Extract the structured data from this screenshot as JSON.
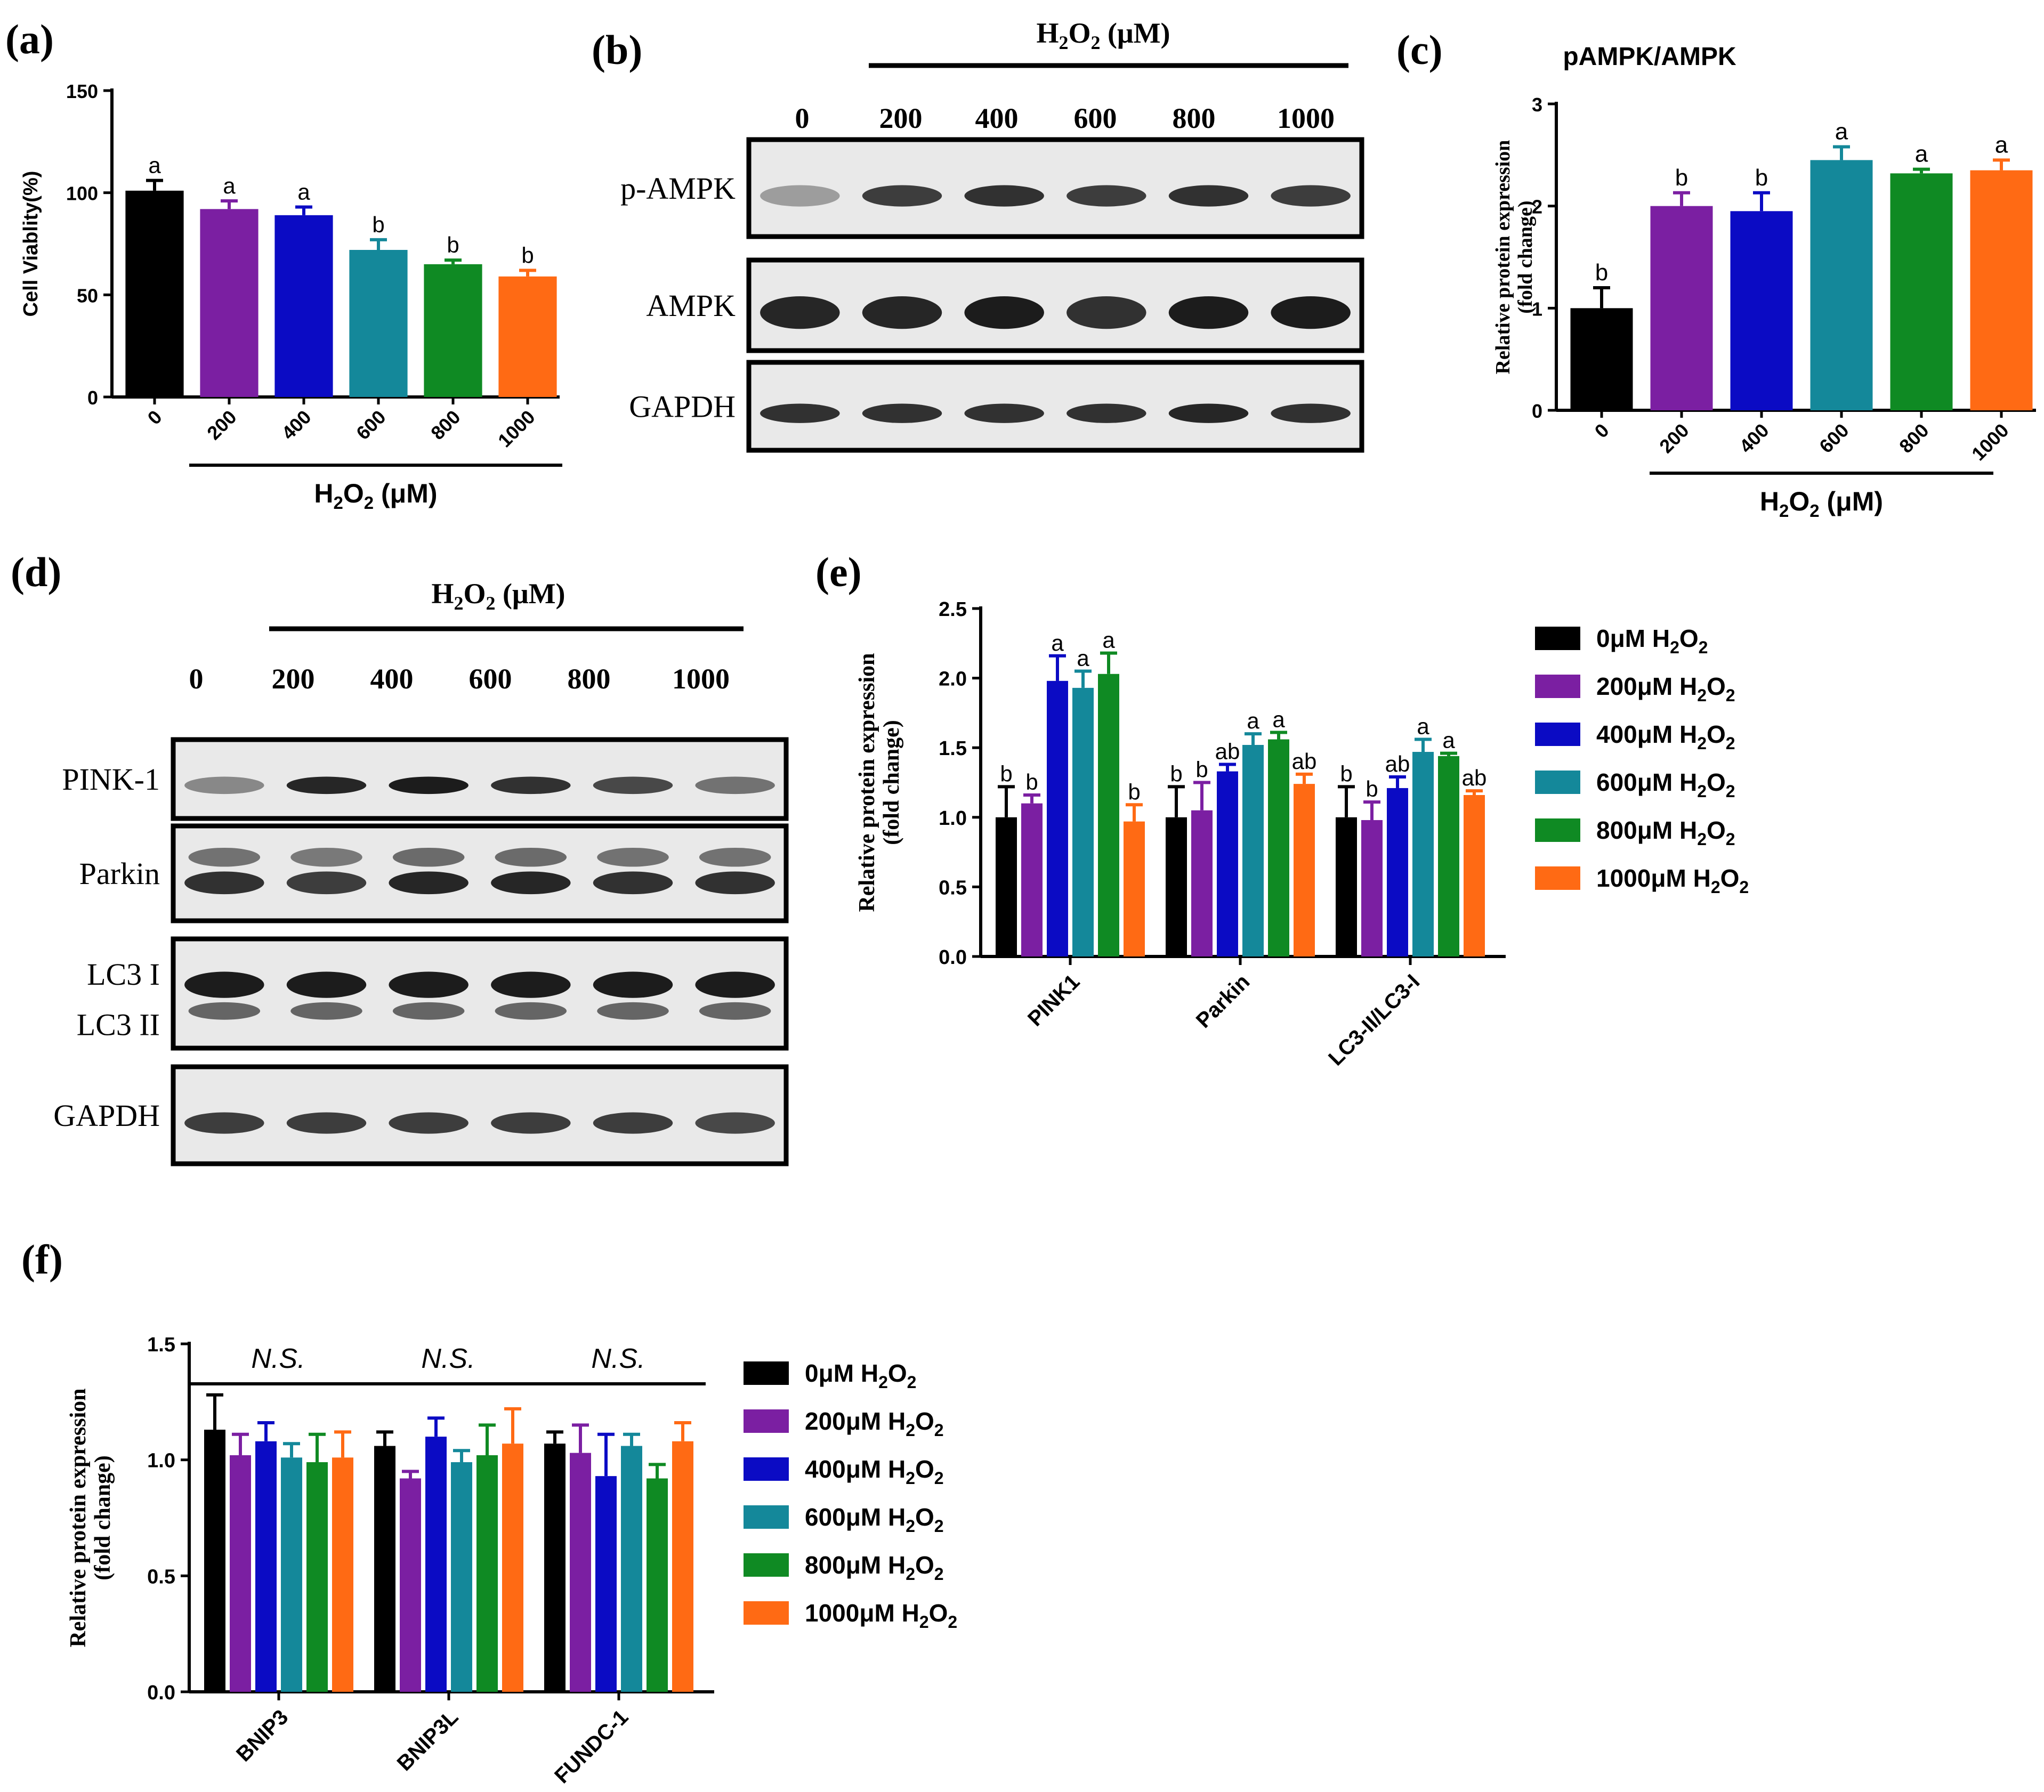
{
  "colors": [
    "#000000",
    "#7b1fa2",
    "#0b0bc4",
    "#14889a",
    "#0f8a23",
    "#ff6a14"
  ],
  "legend_entries": [
    "0μM H2O2",
    "200μM H2O2",
    "400μM H2O2",
    "600μM H2O2",
    "800μM H2O2",
    "1000μM H2O2"
  ],
  "legend": [
    {
      "num": "0",
      "unit": "μM H",
      "sub1": "2",
      "mid": "O",
      "sub2": "2"
    },
    {
      "num": "200",
      "unit": "μM H",
      "sub1": "2",
      "mid": "O",
      "sub2": "2"
    },
    {
      "num": "400",
      "unit": "μM H",
      "sub1": "2",
      "mid": "O",
      "sub2": "2"
    },
    {
      "num": "600",
      "unit": "μM H",
      "sub1": "2",
      "mid": "O",
      "sub2": "2"
    },
    {
      "num": "800",
      "unit": "μM H",
      "sub1": "2",
      "mid": "O",
      "sub2": "2"
    },
    {
      "num": "1000",
      "unit": "μM H",
      "sub1": "2",
      "mid": "O",
      "sub2": "2"
    }
  ],
  "h2o2_label": {
    "a": "H",
    "b": "2",
    "c": "O",
    "d": "2",
    "e": " (μM)"
  },
  "blots": {
    "b": {
      "label": "(b)",
      "lanes": [
        "0",
        "200",
        "400",
        "600",
        "800",
        "1000"
      ],
      "rows": [
        {
          "name": "p-AMPK",
          "pattern": [
            0.35,
            0.8,
            0.85,
            0.8,
            0.85,
            0.8
          ]
        },
        {
          "name": "AMPK",
          "pattern": [
            0.9,
            0.9,
            0.95,
            0.85,
            0.95,
            0.95
          ]
        },
        {
          "name": "GAPDH",
          "pattern": [
            0.85,
            0.85,
            0.85,
            0.85,
            0.9,
            0.85
          ]
        }
      ]
    },
    "d": {
      "label": "(d)",
      "lanes": [
        "0",
        "200",
        "400",
        "600",
        "800",
        "1000"
      ],
      "rows": [
        {
          "name": "PINK-1",
          "pattern": [
            0.45,
            0.9,
            0.95,
            0.85,
            0.75,
            0.55
          ]
        },
        {
          "name": "Parkin",
          "pattern": [
            0.85,
            0.8,
            0.9,
            0.9,
            0.85,
            0.85
          ]
        },
        {
          "name": "LC3 I",
          "name2": "LC3 II",
          "pattern": [
            0.95,
            0.95,
            0.95,
            0.95,
            0.95,
            0.95
          ]
        },
        {
          "name": "GAPDH",
          "pattern": [
            0.8,
            0.8,
            0.8,
            0.8,
            0.8,
            0.75
          ]
        }
      ]
    }
  },
  "chart_data": [
    {
      "id": "a",
      "label": "(a)",
      "type": "bar",
      "title": "",
      "ylabel": "Cell Viablity(%)",
      "xlabel": "H2O2 (μM)",
      "categories": [
        "0",
        "200",
        "400",
        "600",
        "800",
        "1000"
      ],
      "values": [
        101,
        92,
        89,
        72,
        65,
        59
      ],
      "errors": [
        5,
        4,
        4,
        5,
        2,
        3
      ],
      "sig": [
        "a",
        "a",
        "a",
        "b",
        "b",
        "b"
      ],
      "ylim": [
        0,
        150
      ],
      "yticks": [
        "0",
        "50",
        "100",
        "150"
      ]
    },
    {
      "id": "c",
      "label": "(c)",
      "type": "bar",
      "title": "pAMPK/AMPK",
      "ylabel": "Relative protein expression",
      "ylabel2": "(fold change)",
      "xlabel": "H2O2 (μM)",
      "categories": [
        "0",
        "200",
        "400",
        "600",
        "800",
        "1000"
      ],
      "values": [
        1.0,
        2.0,
        1.95,
        2.45,
        2.32,
        2.35
      ],
      "errors": [
        0.2,
        0.13,
        0.18,
        0.13,
        0.04,
        0.1
      ],
      "sig": [
        "b",
        "b",
        "b",
        "a",
        "a",
        "a"
      ],
      "ylim": [
        0,
        3
      ],
      "yticks": [
        "0",
        "1",
        "2",
        "3"
      ]
    },
    {
      "id": "e",
      "label": "(e)",
      "type": "bar",
      "ylabel": "Relative protein expression",
      "ylabel2": "(fold change)",
      "categories": [
        "PINK1",
        "Parkin",
        "LC3-II/LC3-I"
      ],
      "series": [
        {
          "name": "0μM H2O2",
          "values": [
            1.0,
            1.0,
            1.0
          ],
          "errors": [
            0.22,
            0.22,
            0.22
          ],
          "sig": [
            "b",
            "b",
            "b"
          ]
        },
        {
          "name": "200μM H2O2",
          "values": [
            1.1,
            1.05,
            0.98
          ],
          "errors": [
            0.06,
            0.2,
            0.13
          ],
          "sig": [
            "b",
            "b",
            "b"
          ]
        },
        {
          "name": "400μM H2O2",
          "values": [
            1.98,
            1.33,
            1.21
          ],
          "errors": [
            0.18,
            0.05,
            0.08
          ],
          "sig": [
            "a",
            "ab",
            "ab"
          ]
        },
        {
          "name": "600μM H2O2",
          "values": [
            1.93,
            1.52,
            1.47
          ],
          "errors": [
            0.12,
            0.08,
            0.09
          ],
          "sig": [
            "a",
            "a",
            "a"
          ]
        },
        {
          "name": "800μM H2O2",
          "values": [
            2.03,
            1.56,
            1.44
          ],
          "errors": [
            0.15,
            0.05,
            0.02
          ],
          "sig": [
            "a",
            "a",
            "a"
          ]
        },
        {
          "name": "1000μM H2O2",
          "values": [
            0.97,
            1.24,
            1.16
          ],
          "errors": [
            0.12,
            0.07,
            0.03
          ],
          "sig": [
            "b",
            "ab",
            "ab"
          ]
        }
      ],
      "ylim": [
        0,
        2.5
      ],
      "yticks": [
        "0.0",
        "0.5",
        "1.0",
        "1.5",
        "2.0",
        "2.5"
      ]
    },
    {
      "id": "f",
      "label": "(f)",
      "type": "bar",
      "ylabel": "Relative protein expression",
      "ylabel2": "(fold change)",
      "categories": [
        "BNIP3",
        "BNIP3L",
        "FUNDC-1"
      ],
      "group_annotations": [
        "N.S.",
        "N.S.",
        "N.S."
      ],
      "series": [
        {
          "name": "0μM H2O2",
          "values": [
            1.13,
            1.06,
            1.07
          ],
          "errors": [
            0.15,
            0.06,
            0.05
          ]
        },
        {
          "name": "200μM H2O2",
          "values": [
            1.02,
            0.92,
            1.03
          ],
          "errors": [
            0.09,
            0.03,
            0.12
          ]
        },
        {
          "name": "400μM H2O2",
          "values": [
            1.08,
            1.1,
            0.93
          ],
          "errors": [
            0.08,
            0.08,
            0.18
          ]
        },
        {
          "name": "600μM H2O2",
          "values": [
            1.01,
            0.99,
            1.06
          ],
          "errors": [
            0.06,
            0.05,
            0.05
          ]
        },
        {
          "name": "800μM H2O2",
          "values": [
            0.99,
            1.02,
            0.92
          ],
          "errors": [
            0.12,
            0.13,
            0.06
          ]
        },
        {
          "name": "1000μM H2O2",
          "values": [
            1.01,
            1.07,
            1.08
          ],
          "errors": [
            0.11,
            0.15,
            0.08
          ]
        }
      ],
      "ylim": [
        0,
        1.5
      ],
      "yticks": [
        "0.0",
        "0.5",
        "1.0",
        "1.5"
      ]
    }
  ]
}
